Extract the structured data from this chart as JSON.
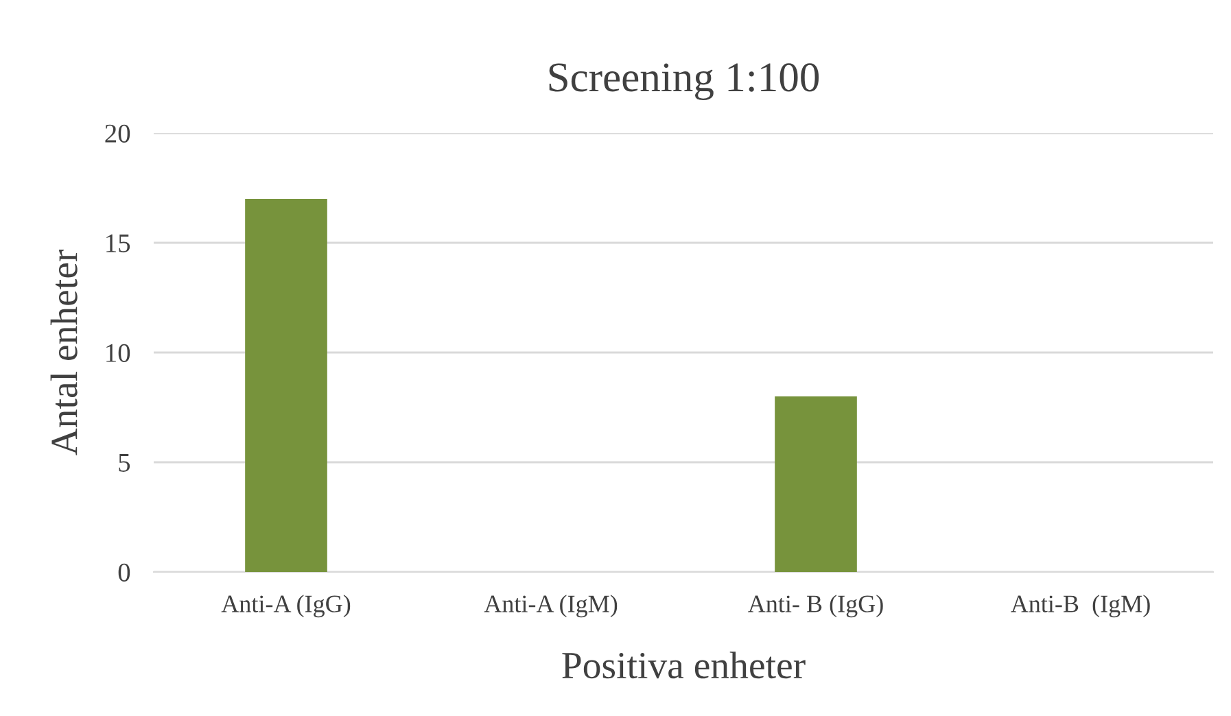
{
  "chart_data": {
    "type": "bar",
    "title": "Screening 1:100",
    "xlabel": "Positiva enheter",
    "ylabel": "Antal enheter",
    "categories": [
      "Anti-A (IgG)",
      "Anti-A (IgM)",
      "Anti- B (IgG)",
      "Anti-B  (IgM)"
    ],
    "values": [
      17,
      0,
      8,
      0
    ],
    "color": "#77933c",
    "ylim": [
      0,
      20
    ],
    "yticks": [
      0,
      5,
      10,
      15,
      20
    ],
    "grid": "y",
    "legend": false
  }
}
